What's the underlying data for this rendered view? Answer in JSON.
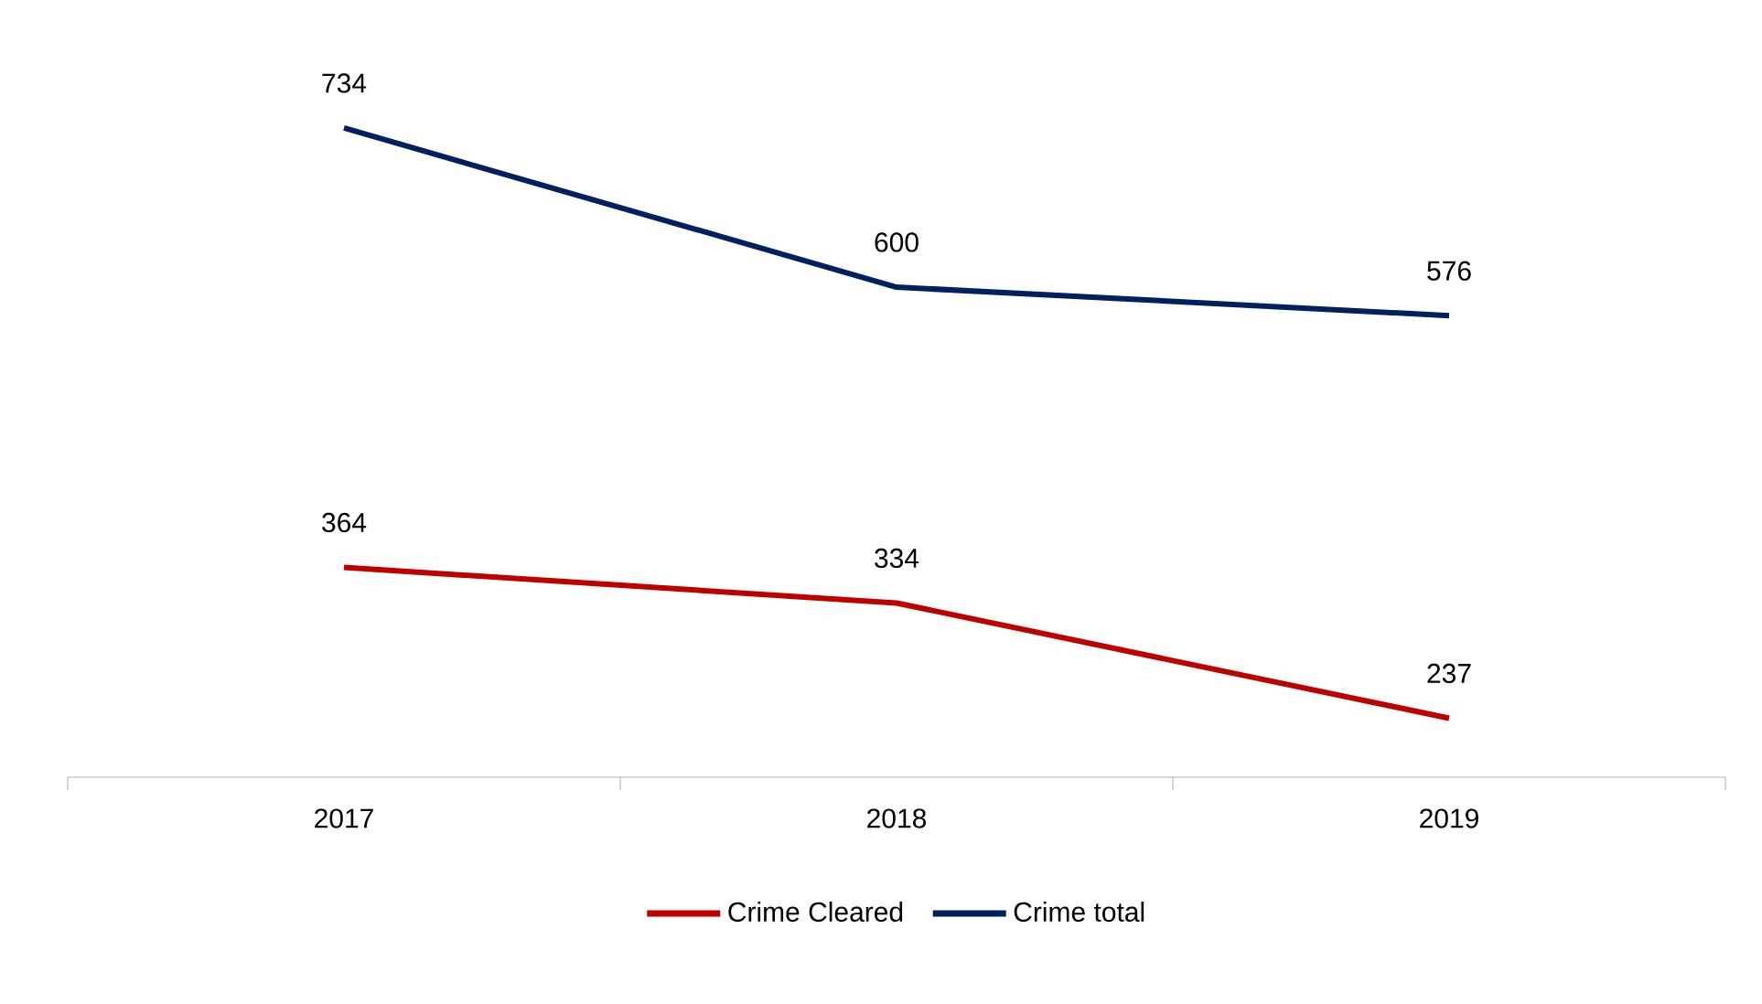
{
  "chart_data": {
    "type": "line",
    "categories": [
      "2017",
      "2018",
      "2019"
    ],
    "series": [
      {
        "name": "Crime Cleared",
        "color": "#c00000",
        "values": [
          364,
          334,
          237
        ]
      },
      {
        "name": "Crime total",
        "color": "#002060",
        "values": [
          734,
          600,
          576
        ]
      }
    ],
    "data_labels": true,
    "legend": "bottom",
    "grid": false,
    "marker": "none",
    "line_style": "solid",
    "tick_labels": "x"
  }
}
